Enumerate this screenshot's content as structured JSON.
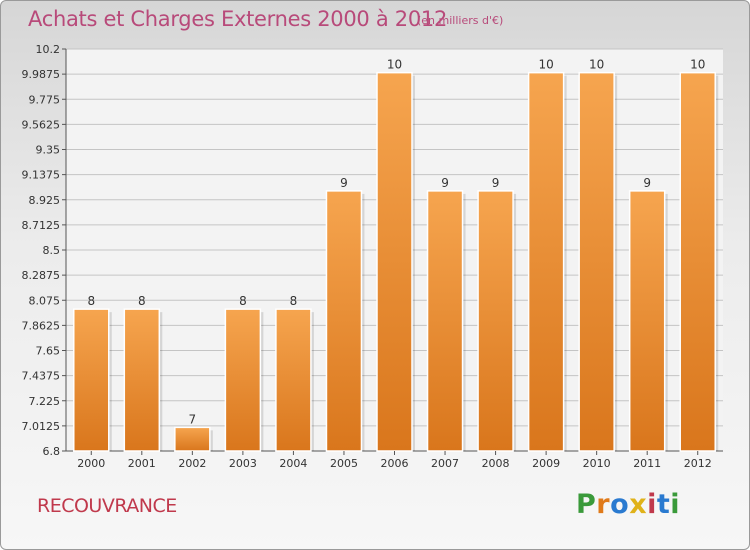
{
  "header": {
    "title": "Achats et Charges Externes 2000 à 2012",
    "unit": "(en milliers d'€)"
  },
  "footer": {
    "commune": "RECOUVRANCE",
    "logo": "Proxiti"
  },
  "colors": {
    "bar_light": "#f6a54f",
    "bar_dark": "#d9761c",
    "title": "#b84a7a",
    "commune": "#c0394c",
    "logo_letters": [
      "#3a9a3a",
      "#e07a1a",
      "#2a7ad0",
      "#e0b21a",
      "#c0394c",
      "#2a7ad0",
      "#3a9a3a"
    ]
  },
  "chart_data": {
    "type": "bar",
    "title": "Achats et Charges Externes 2000 à 2012",
    "subtitle": "(en milliers d'€)",
    "categories": [
      "2000",
      "2001",
      "2002",
      "2003",
      "2004",
      "2005",
      "2006",
      "2007",
      "2008",
      "2009",
      "2010",
      "2011",
      "2012"
    ],
    "values": [
      8,
      8,
      7,
      8,
      8,
      9,
      10,
      9,
      9,
      10,
      10,
      9,
      10
    ],
    "data_labels": [
      "8",
      "8",
      "7",
      "8",
      "8",
      "9",
      "10",
      "9",
      "9",
      "10",
      "10",
      "9",
      "10"
    ],
    "ylim": [
      6.8,
      10.2
    ],
    "yticks": [
      6.8,
      7.0125,
      7.225,
      7.4375,
      7.65,
      7.8625,
      8.075,
      8.2875,
      8.5,
      8.7125,
      8.925,
      9.1375,
      9.35,
      9.5625,
      9.775,
      9.9875,
      10.2
    ],
    "ytick_labels": [
      "6.8",
      "7.0125",
      "7.225",
      "7.4375",
      "7.65",
      "7.8625",
      "8.075",
      "8.2875",
      "8.5",
      "8.7125",
      "8.925",
      "9.1375",
      "9.35",
      "9.5625",
      "9.775",
      "9.9875",
      "10.2"
    ],
    "grid": true,
    "legend": "none"
  }
}
